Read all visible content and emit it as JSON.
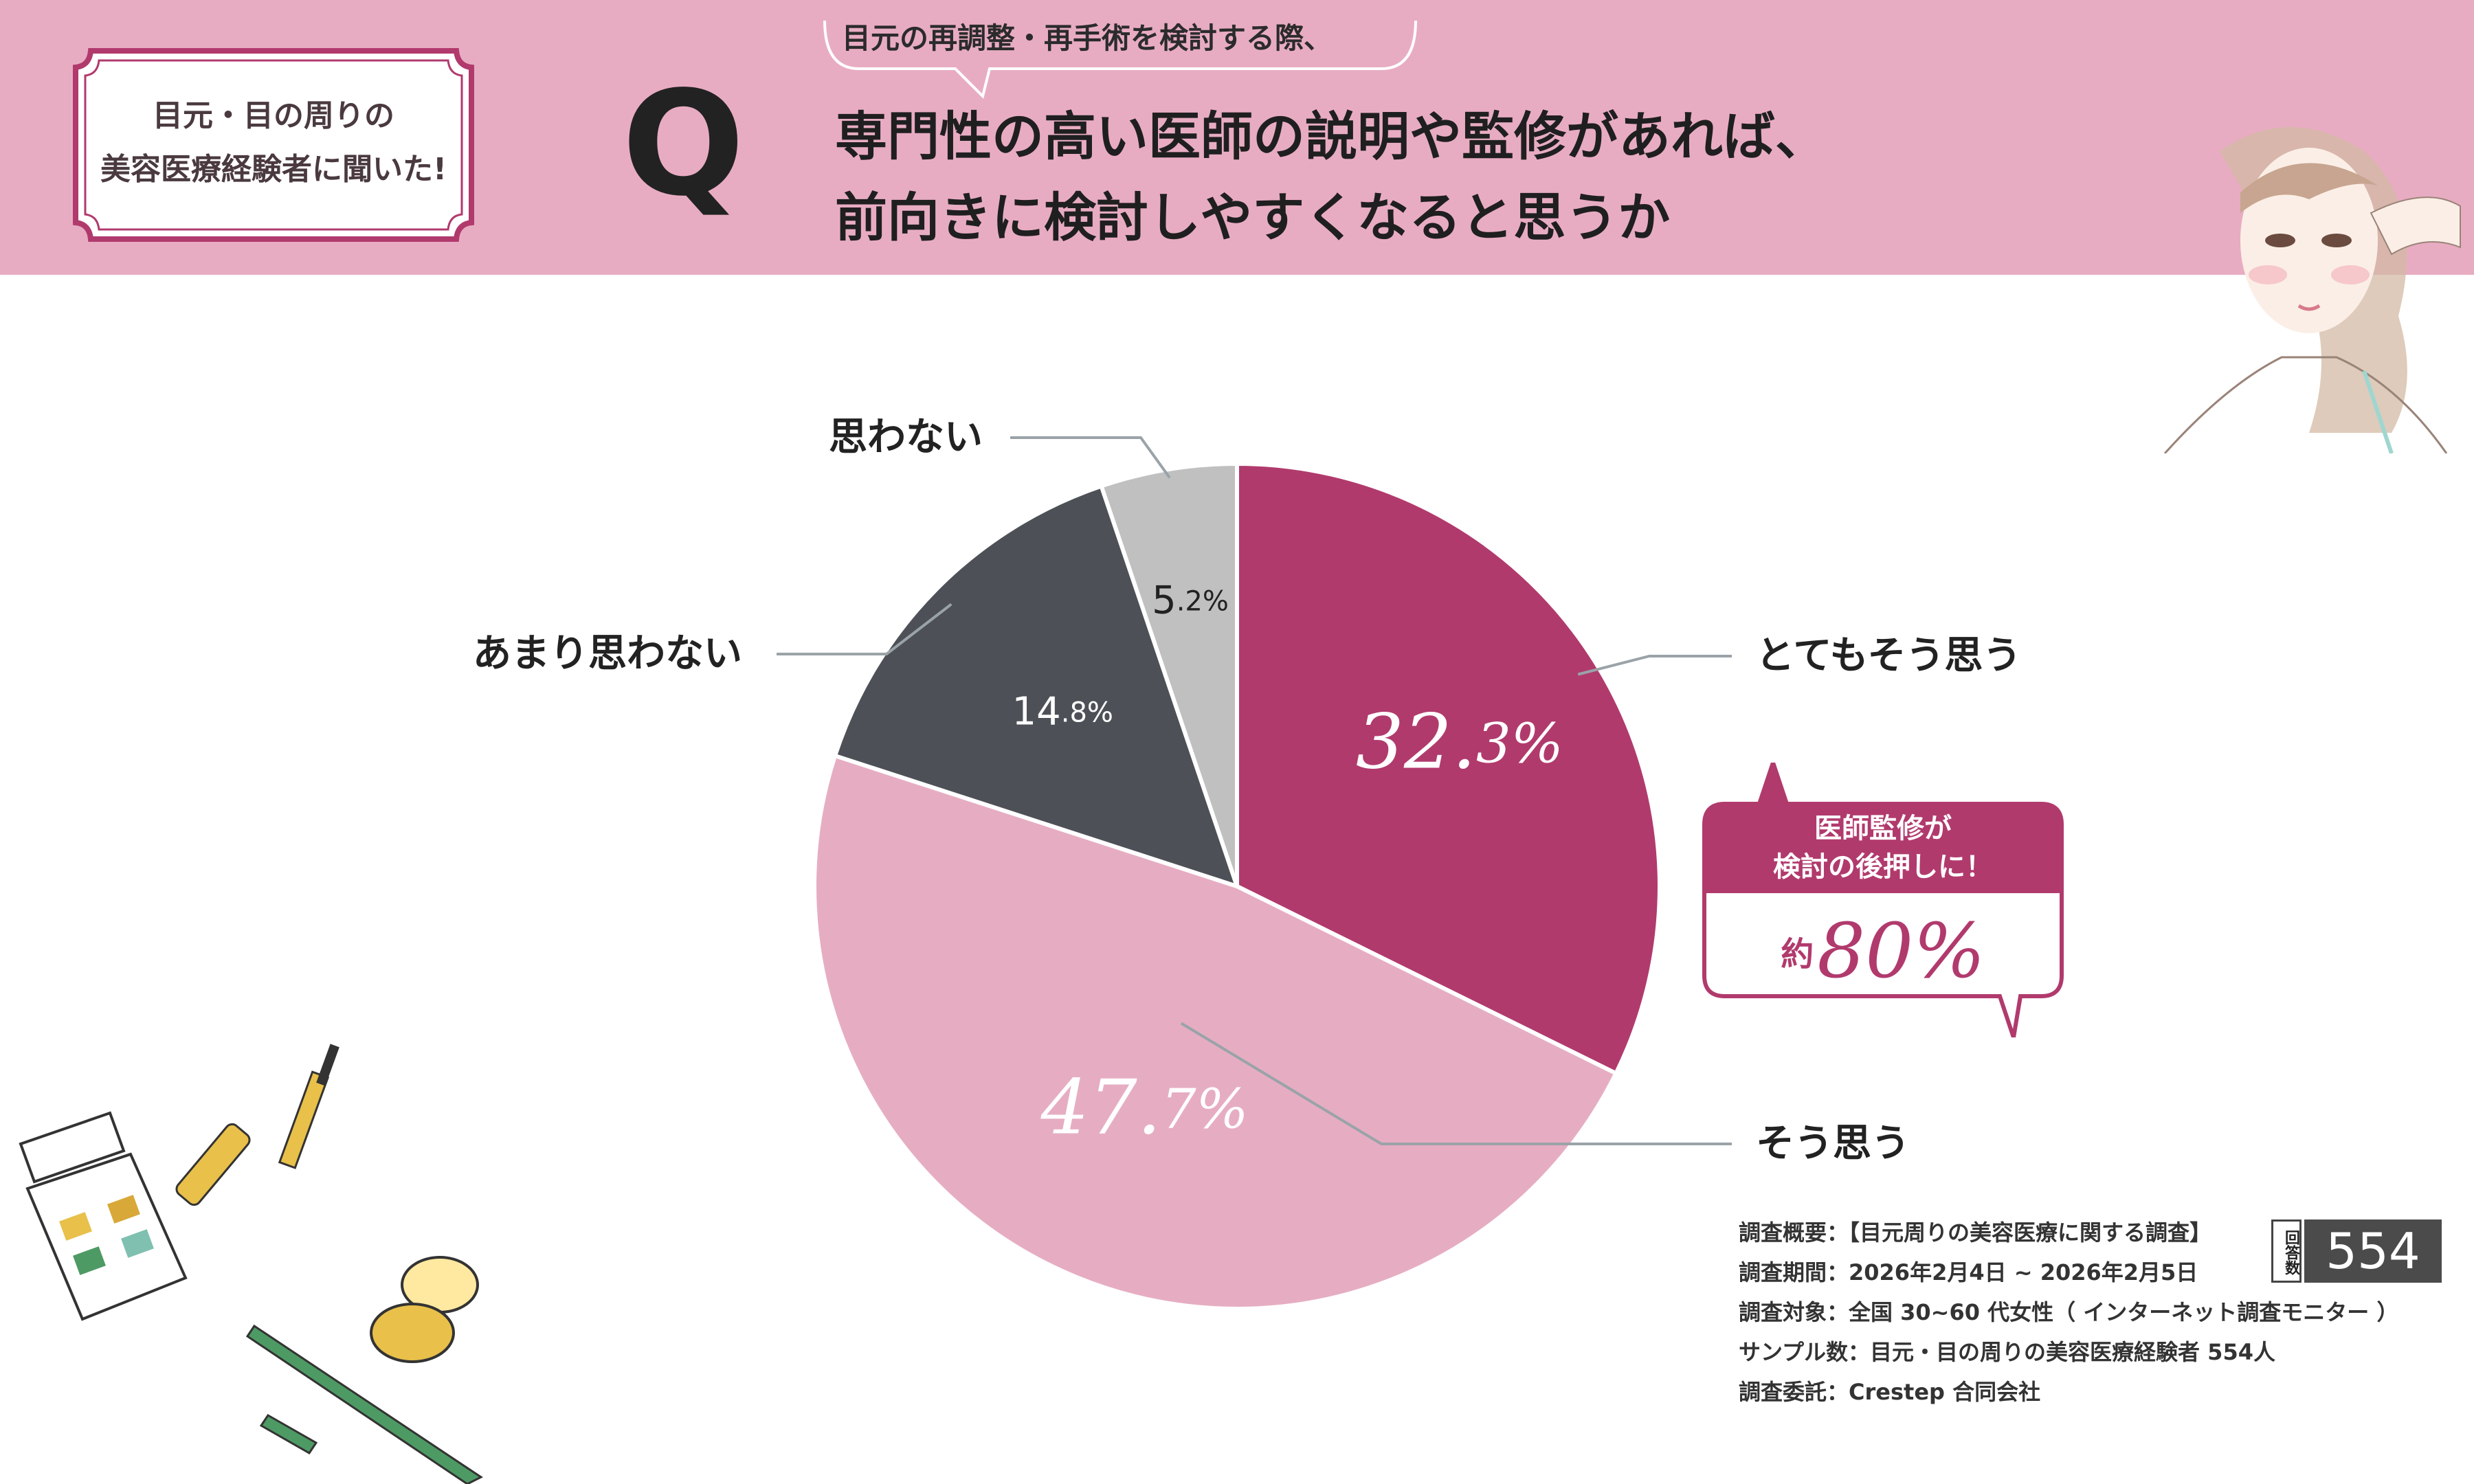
{
  "header": {
    "badge_line1": "目元・目の周りの",
    "badge_line2": "美容医療経験者に聞いた!",
    "q_mark": "Q",
    "sub_question": "目元の再調整・再手術を検討する際、",
    "question_line1": "専門性の高い医師の説明や監修があれば、",
    "question_line2": "前向きに検討しやすくなると思うか"
  },
  "colors": {
    "header_bg": "#e8acc2",
    "accent": "#b13a6d",
    "slice_strong": "#b13a6d",
    "slice_agree": "#e6adc2",
    "slice_little": "#4d5157",
    "slice_no": "#c0c0c0"
  },
  "chart_data": {
    "type": "pie",
    "categories": [
      "とてもそう思う",
      "そう思う",
      "あまり思わない",
      "思わない"
    ],
    "values": [
      32.3,
      47.7,
      14.8,
      5.2
    ],
    "value_labels": [
      {
        "int": "32.",
        "dec": "3%"
      },
      {
        "int": "47.",
        "dec": "7%"
      },
      {
        "int": "14",
        "dec": ".8%"
      },
      {
        "int": "5",
        "dec": ".2%"
      }
    ]
  },
  "callout": {
    "line1": "医師監修が",
    "line2": "検討の後押しに！",
    "prefix": "約",
    "value": "80%"
  },
  "survey": {
    "line1": "調査概要：【目元周りの美容医療に関する調査】",
    "line2": "調査期間：2026年2月4日 ~ 2026年2月5日",
    "line3": "調査対象：全国 30~60 代女性（ インターネット調査モニター ）",
    "line4": "サンプル数：目元・目の周りの美容医療経験者 554人",
    "line5": "調査委託：Crestep 合同会社",
    "count_label": "回答数",
    "count_value": "554"
  }
}
